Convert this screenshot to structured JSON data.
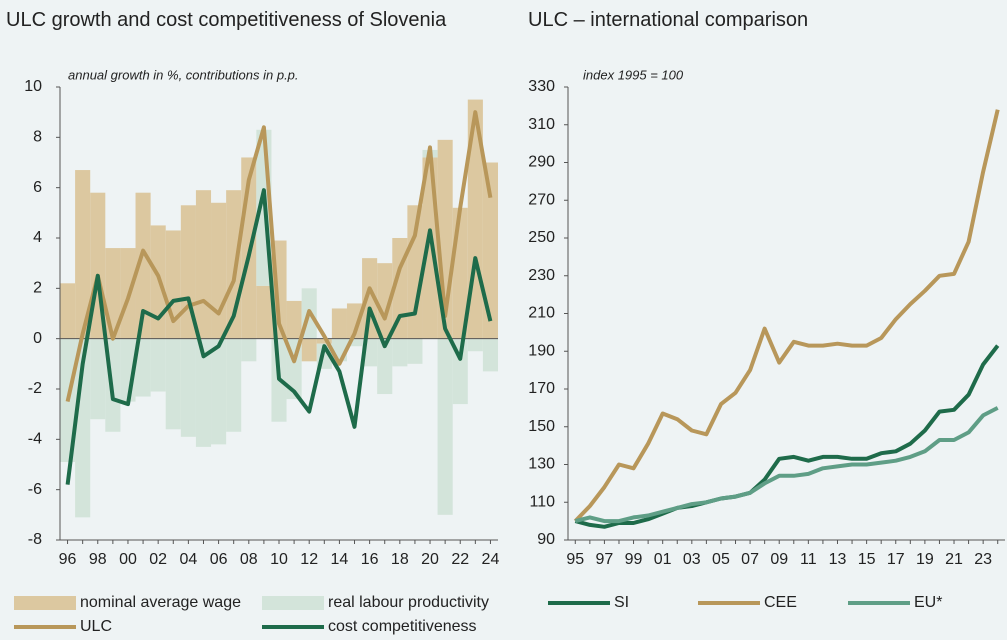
{
  "chart_data": [
    {
      "type": "combo",
      "title": "ULC growth and cost competitiveness of Slovenia",
      "subtitle": "annual growth in %, contributions in p.p.",
      "categories": [
        "96",
        null,
        "98",
        null,
        "00",
        null,
        "02",
        null,
        "04",
        null,
        "06",
        null,
        "08",
        null,
        "10",
        null,
        "12",
        null,
        "14",
        null,
        "16",
        null,
        "18",
        null,
        "20",
        null,
        "22",
        null,
        "24"
      ],
      "ylim": [
        -8,
        10
      ],
      "yticks": [
        -8,
        -6,
        -4,
        -2,
        0,
        2,
        4,
        6,
        8,
        10
      ],
      "series": [
        {
          "name": "nominal average wage",
          "type": "bar",
          "color": "#dcc8a0",
          "values": [
            2.2,
            6.7,
            5.8,
            3.6,
            3.6,
            5.8,
            4.5,
            4.3,
            5.3,
            5.9,
            5.4,
            5.9,
            7.2,
            2.1,
            3.9,
            1.5,
            -0.9,
            -0.2,
            1.2,
            1.4,
            3.2,
            3.0,
            4.0,
            5.3,
            7.2,
            7.9,
            5.2,
            9.5,
            7.0
          ]
        },
        {
          "name": "real labour productivity",
          "type": "bar",
          "color": "#d3e4da",
          "values": [
            -4.9,
            -7.1,
            -3.2,
            -3.7,
            -2.5,
            -2.3,
            -2.1,
            -3.6,
            -3.9,
            -4.3,
            -4.2,
            -3.7,
            -0.9,
            6.2,
            -3.3,
            -2.4,
            2.0,
            -1.0,
            -0.9,
            -0.3,
            -1.1,
            -2.2,
            -1.1,
            -1.0,
            0.3,
            -7.0,
            -2.6,
            -0.5,
            -1.3
          ]
        },
        {
          "name": "ULC",
          "type": "line",
          "color": "#b8975a",
          "values": [
            -2.5,
            0.2,
            2.5,
            0.0,
            1.6,
            3.5,
            2.5,
            0.7,
            1.3,
            1.5,
            1.0,
            2.3,
            6.3,
            8.4,
            0.6,
            -0.9,
            1.1,
            0.1,
            -1.0,
            0.2,
            2.0,
            0.8,
            2.8,
            4.1,
            7.6,
            0.9,
            5.2,
            9.0,
            5.6
          ]
        },
        {
          "name": "cost competitiveness",
          "type": "line",
          "color": "#1e6b4a",
          "values": [
            -5.8,
            -1.0,
            2.5,
            -2.4,
            -2.6,
            1.1,
            0.8,
            1.5,
            1.6,
            -0.7,
            -0.3,
            0.9,
            3.3,
            5.9,
            -1.6,
            -2.1,
            -2.9,
            -0.3,
            -1.3,
            -3.5,
            1.2,
            -0.3,
            0.9,
            1.0,
            4.3,
            0.4,
            -0.8,
            3.2,
            0.7
          ]
        }
      ]
    },
    {
      "type": "line",
      "title": "ULC – international comparison",
      "subtitle": "index 1995 = 100",
      "categories": [
        "95",
        null,
        "97",
        null,
        "99",
        null,
        "01",
        null,
        "03",
        null,
        "05",
        null,
        "07",
        null,
        "09",
        null,
        "11",
        null,
        "13",
        null,
        "15",
        null,
        "17",
        null,
        "19",
        null,
        "21",
        null,
        "23",
        null
      ],
      "ylim": [
        90,
        330
      ],
      "yticks": [
        90,
        110,
        130,
        150,
        170,
        190,
        210,
        230,
        250,
        270,
        290,
        310,
        330
      ],
      "series": [
        {
          "name": "SI",
          "type": "line",
          "color": "#1e6b4a",
          "values": [
            100,
            98,
            97,
            99,
            99,
            101,
            104,
            107,
            108,
            110,
            112,
            113,
            115,
            122,
            133,
            134,
            132,
            134,
            134,
            133,
            133,
            136,
            137,
            141,
            148,
            158,
            159,
            167,
            183,
            193
          ]
        },
        {
          "name": "CEE",
          "type": "line",
          "color": "#b8975a",
          "values": [
            100,
            108,
            118,
            130,
            128,
            141,
            157,
            154,
            148,
            146,
            162,
            168,
            180,
            202,
            184,
            195,
            193,
            193,
            194,
            193,
            193,
            197,
            207,
            215,
            222,
            230,
            231,
            248,
            285,
            318
          ]
        },
        {
          "name": "EU*",
          "type": "line",
          "color": "#5f9e86",
          "values": [
            100,
            102,
            100,
            100,
            102,
            103,
            105,
            107,
            109,
            110,
            112,
            113,
            115,
            120,
            124,
            124,
            125,
            128,
            129,
            130,
            130,
            131,
            132,
            134,
            137,
            143,
            143,
            147,
            156,
            160
          ]
        }
      ]
    }
  ]
}
